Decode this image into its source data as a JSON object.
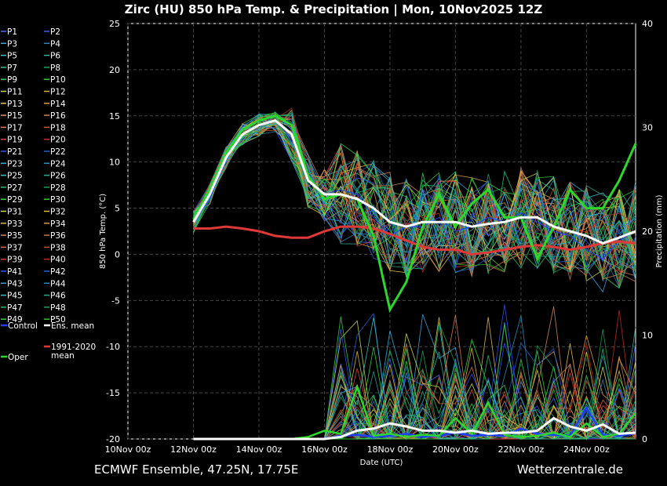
{
  "header": {
    "title": "Zirc  (HU)  850 hPa Temp. & Precipitation | Mon, 10Nov2025 12Z"
  },
  "footer": {
    "left": "ECMWF Ensemble, 47.25N, 17.75E",
    "right": "Wetterzentrale.de"
  },
  "chart_data": {
    "type": "line",
    "title": "Zirc  (HU)  850 hPa Temp. & Precipitation | Mon, 10Nov2025 12Z",
    "xlabel": "Date (UTC)",
    "ylabel": "850 hPa Temp. (°C)",
    "y2label": "Precipitation (mm)",
    "ylim": [
      -20,
      25
    ],
    "y2lim": [
      0,
      40
    ],
    "xlim": [
      "2025-11-10 00Z",
      "2025-11-25 12Z"
    ],
    "x_ticks": [
      "10Nov 00z",
      "12Nov 00z",
      "14Nov 00z",
      "16Nov 00z",
      "18Nov 00z",
      "20Nov 00z",
      "22Nov 00z",
      "24Nov 00z"
    ],
    "y_ticks": [
      25,
      20,
      15,
      10,
      5,
      0,
      -5,
      -10,
      -15,
      -20
    ],
    "y2_ticks": [
      40,
      30,
      20,
      10,
      0
    ],
    "grid": true,
    "legend_position": "left",
    "x": [
      "2025-11-12 00Z",
      "2025-11-12 12Z",
      "2025-11-13 00Z",
      "2025-11-13 12Z",
      "2025-11-14 00Z",
      "2025-11-14 12Z",
      "2025-11-15 00Z",
      "2025-11-15 12Z",
      "2025-11-16 00Z",
      "2025-11-16 12Z",
      "2025-11-17 00Z",
      "2025-11-17 12Z",
      "2025-11-18 00Z",
      "2025-11-18 12Z",
      "2025-11-19 00Z",
      "2025-11-19 12Z",
      "2025-11-20 00Z",
      "2025-11-20 12Z",
      "2025-11-21 00Z",
      "2025-11-21 12Z",
      "2025-11-22 00Z",
      "2025-11-22 12Z",
      "2025-11-23 00Z",
      "2025-11-23 12Z",
      "2025-11-24 00Z",
      "2025-11-24 12Z",
      "2025-11-25 00Z",
      "2025-11-25 12Z"
    ],
    "series": [
      {
        "name": "Ens. mean",
        "color": "#ffffff",
        "width": 3,
        "values": [
          3.5,
          6.5,
          10.5,
          13,
          14,
          14.5,
          13,
          8,
          6.5,
          6.5,
          6,
          5,
          3.5,
          3,
          3.5,
          3.5,
          3.5,
          3,
          3.3,
          3.5,
          4,
          4,
          3,
          2.5,
          2,
          1.2,
          1.8,
          2.5
        ]
      },
      {
        "name": "1991-2020 mean",
        "color": "#e03838",
        "width": 3,
        "values": [
          2.8,
          2.8,
          3,
          2.8,
          2.5,
          2,
          1.8,
          1.8,
          2.5,
          3,
          3,
          2.8,
          2.2,
          1.5,
          0.8,
          0.5,
          0.5,
          0,
          0.2,
          0.5,
          0.8,
          1,
          0.8,
          0.5,
          0.8,
          1.2,
          1.4,
          1.2
        ]
      },
      {
        "name": "Oper",
        "color": "#2bd82b",
        "width": 3,
        "values": [
          3.8,
          7,
          11,
          13.5,
          14.5,
          15,
          14,
          8.5,
          6,
          6.5,
          6,
          2,
          -6,
          -3,
          3,
          6.5,
          3,
          5.5,
          7,
          4,
          4,
          -0.5,
          3,
          7,
          5,
          5,
          8,
          12
        ]
      },
      {
        "name": "Control",
        "color": "#1e3cff",
        "width": 1,
        "values": [
          3.5,
          6,
          10.5,
          13,
          14,
          14.5,
          12.5,
          8,
          6.5,
          7,
          6.5,
          4,
          2,
          3,
          3,
          4,
          2.5,
          3,
          4,
          3.5,
          4.5,
          3.5,
          2.5,
          2,
          0.5,
          -0.5,
          1.5,
          2.5
        ]
      }
    ],
    "precipitation": {
      "ens_mean_mm": [
        0,
        0,
        0,
        0,
        0,
        0,
        0,
        0,
        0,
        0.2,
        0.8,
        1,
        1.5,
        1.2,
        0.8,
        0.8,
        0.6,
        0.8,
        0.5,
        0.6,
        0.6,
        0.8,
        2,
        1.2,
        0.8,
        1.4,
        0.5,
        0.6
      ],
      "oper_mm": [
        0,
        0,
        0,
        0,
        0,
        0,
        0,
        0.2,
        0.8,
        0.5,
        5,
        0.3,
        0.5,
        0.2,
        0.4,
        0.3,
        2,
        0.5,
        3.5,
        0.4,
        0.2,
        0.3,
        0.6,
        0.2,
        1.5,
        0.2,
        0.5,
        2.5
      ],
      "control_mm": [
        0,
        0,
        0,
        0,
        0,
        0,
        0,
        0,
        0,
        0.3,
        0.4,
        0.2,
        0.3,
        0.5,
        0.2,
        0.3,
        0.6,
        0.3,
        0.4,
        0.3,
        1,
        0.5,
        0.4,
        0.3,
        3,
        0.4,
        0.3,
        0.6
      ]
    },
    "legend": {
      "members": [
        "P1",
        "P2",
        "P3",
        "P4",
        "P5",
        "P6",
        "P7",
        "P8",
        "P9",
        "P10",
        "P11",
        "P12",
        "P13",
        "P14",
        "P15",
        "P16",
        "P17",
        "P18",
        "P19",
        "P20",
        "P21",
        "P22",
        "P23",
        "P24",
        "P25",
        "P26",
        "P27",
        "P28",
        "P29",
        "P30",
        "P31",
        "P32",
        "P33",
        "P34",
        "P35",
        "P36",
        "P37",
        "P38",
        "P39",
        "P40",
        "P41",
        "P42",
        "P43",
        "P44",
        "P45",
        "P46",
        "P47",
        "P48",
        "P49",
        "P50"
      ],
      "member_colors": [
        "#4a6aff",
        "#3f5fe0",
        "#39a8e8",
        "#2e86c1",
        "#33c2c2",
        "#2fb39a",
        "#22c87a",
        "#1aa85a",
        "#2fd24a",
        "#38c838",
        "#c8d840",
        "#d8b838",
        "#e8c048",
        "#e0a040",
        "#e09060",
        "#d08050",
        "#e07850",
        "#c85830",
        "#e04040",
        "#c83030",
        "#3050ff",
        "#2860d0",
        "#30b0e0",
        "#2890c0",
        "#30c8c8",
        "#28b090",
        "#20c070",
        "#18a050",
        "#30d040",
        "#30c030",
        "#d0e040",
        "#e0c040",
        "#e0b850",
        "#e09838",
        "#d08860",
        "#c07848",
        "#d87040",
        "#c05028",
        "#d83838",
        "#c02828",
        "#3050ff",
        "#2060d0",
        "#38a0e0",
        "#2888c0",
        "#30c0c0",
        "#28a888",
        "#20c070",
        "#18a050",
        "#30d040",
        "#30c030"
      ],
      "special": [
        {
          "label": "Control",
          "color": "#1e3cff"
        },
        {
          "label": "Ens. mean",
          "color": "#ffffff"
        },
        {
          "label": "1991-2020 mean",
          "color": "#e03838"
        },
        {
          "label": "Oper",
          "color": "#2bd82b"
        }
      ]
    }
  }
}
